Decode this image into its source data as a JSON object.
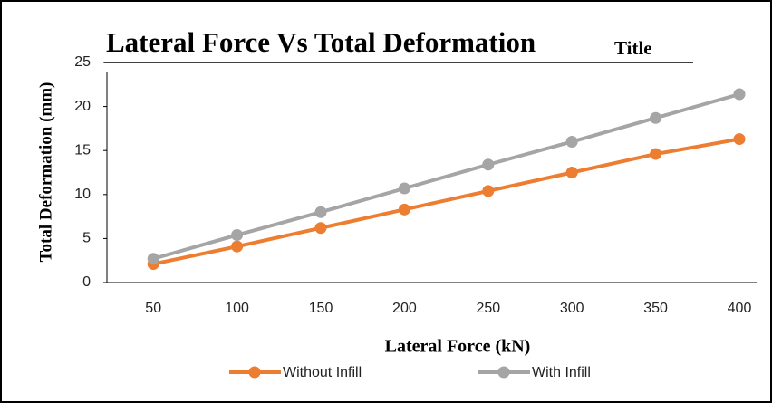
{
  "chart_data": {
    "type": "line",
    "title": "Lateral Force Vs Total Deformation",
    "title_note": "Title",
    "x_label": "Lateral Force (kN)",
    "y_label": "Total Deformation (mm)",
    "categories": [
      50,
      100,
      150,
      200,
      250,
      300,
      350,
      400
    ],
    "series": [
      {
        "name": "Without Infill",
        "color": "#ed7d31",
        "values": [
          2.1,
          4.1,
          6.2,
          8.3,
          10.4,
          12.5,
          14.6,
          16.3
        ]
      },
      {
        "name": "With Infill",
        "color": "#a5a5a5",
        "values": [
          2.7,
          5.4,
          8.0,
          10.7,
          13.4,
          16.0,
          18.7,
          21.4
        ]
      }
    ],
    "ylim": [
      0,
      25
    ],
    "yticks": [
      0,
      5,
      10,
      15,
      20,
      25
    ],
    "grid": false,
    "legend": "bottom"
  }
}
